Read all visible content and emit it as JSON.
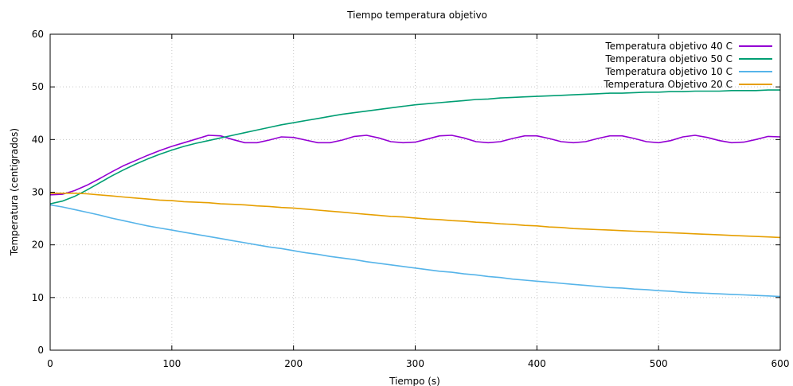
{
  "chart_data": {
    "type": "line",
    "title": "Tiempo temperatura objetivo",
    "xlabel": "Tiempo (s)",
    "ylabel": "Temperatura (centigrados)",
    "xlim": [
      0,
      600
    ],
    "ylim": [
      0,
      60
    ],
    "xticks": [
      0,
      100,
      200,
      300,
      400,
      500,
      600
    ],
    "yticks": [
      0,
      10,
      20,
      30,
      40,
      50,
      60
    ],
    "grid": true,
    "legend_position": "top-right",
    "series": [
      {
        "name": "Temperatura objetivo 40 C",
        "color": "#9400d3",
        "x": [
          0,
          10,
          20,
          30,
          40,
          50,
          60,
          70,
          80,
          90,
          100,
          110,
          120,
          130,
          140,
          150,
          160,
          170,
          180,
          190,
          200,
          210,
          220,
          230,
          240,
          250,
          260,
          270,
          280,
          290,
          300,
          310,
          320,
          330,
          340,
          350,
          360,
          370,
          380,
          390,
          400,
          410,
          420,
          430,
          440,
          450,
          460,
          470,
          480,
          490,
          500,
          510,
          520,
          530,
          540,
          550,
          560,
          570,
          580,
          590,
          600
        ],
        "y": [
          29.5,
          29.6,
          30.3,
          31.3,
          32.5,
          33.8,
          35.0,
          36.0,
          37.0,
          37.9,
          38.7,
          39.4,
          40.1,
          40.8,
          40.7,
          40.0,
          39.4,
          39.4,
          39.9,
          40.5,
          40.4,
          39.9,
          39.4,
          39.4,
          39.9,
          40.6,
          40.8,
          40.3,
          39.6,
          39.4,
          39.5,
          40.1,
          40.7,
          40.8,
          40.3,
          39.6,
          39.4,
          39.6,
          40.2,
          40.7,
          40.7,
          40.2,
          39.6,
          39.4,
          39.6,
          40.2,
          40.7,
          40.7,
          40.2,
          39.6,
          39.4,
          39.8,
          40.5,
          40.8,
          40.4,
          39.8,
          39.4,
          39.5,
          40.0,
          40.6,
          40.5
        ]
      },
      {
        "name": "Temperatura objetivo 50 C",
        "color": "#009e73",
        "x": [
          0,
          10,
          20,
          30,
          40,
          50,
          60,
          70,
          80,
          90,
          100,
          110,
          120,
          130,
          140,
          150,
          160,
          170,
          180,
          190,
          200,
          210,
          220,
          230,
          240,
          250,
          260,
          270,
          280,
          290,
          300,
          310,
          320,
          330,
          340,
          350,
          360,
          370,
          380,
          390,
          400,
          410,
          420,
          430,
          440,
          450,
          460,
          470,
          480,
          490,
          500,
          510,
          520,
          530,
          540,
          550,
          560,
          570,
          580,
          590,
          600
        ],
        "y": [
          27.8,
          28.3,
          29.2,
          30.4,
          31.7,
          33.0,
          34.2,
          35.3,
          36.3,
          37.2,
          38.0,
          38.7,
          39.3,
          39.8,
          40.3,
          40.8,
          41.3,
          41.8,
          42.3,
          42.8,
          43.2,
          43.6,
          44.0,
          44.4,
          44.8,
          45.1,
          45.4,
          45.7,
          46.0,
          46.3,
          46.6,
          46.8,
          47.0,
          47.2,
          47.4,
          47.6,
          47.7,
          47.9,
          48.0,
          48.1,
          48.2,
          48.3,
          48.4,
          48.5,
          48.6,
          48.7,
          48.8,
          48.8,
          48.9,
          49.0,
          49.0,
          49.1,
          49.1,
          49.2,
          49.2,
          49.2,
          49.3,
          49.3,
          49.3,
          49.4,
          49.4
        ]
      },
      {
        "name": "Temperatura objetivo 10 C",
        "color": "#56b4e9",
        "x": [
          0,
          10,
          20,
          30,
          40,
          50,
          60,
          70,
          80,
          90,
          100,
          110,
          120,
          130,
          140,
          150,
          160,
          170,
          180,
          190,
          200,
          210,
          220,
          230,
          240,
          250,
          260,
          270,
          280,
          290,
          300,
          310,
          320,
          330,
          340,
          350,
          360,
          370,
          380,
          390,
          400,
          410,
          420,
          430,
          440,
          450,
          460,
          470,
          480,
          490,
          500,
          510,
          520,
          530,
          540,
          550,
          560,
          570,
          580,
          590,
          600
        ],
        "y": [
          27.6,
          27.2,
          26.7,
          26.2,
          25.7,
          25.1,
          24.6,
          24.1,
          23.6,
          23.2,
          22.8,
          22.4,
          22.0,
          21.6,
          21.2,
          20.8,
          20.4,
          20.0,
          19.6,
          19.3,
          18.9,
          18.5,
          18.2,
          17.8,
          17.5,
          17.2,
          16.8,
          16.5,
          16.2,
          15.9,
          15.6,
          15.3,
          15.0,
          14.8,
          14.5,
          14.3,
          14.0,
          13.8,
          13.5,
          13.3,
          13.1,
          12.9,
          12.7,
          12.5,
          12.3,
          12.1,
          11.9,
          11.8,
          11.6,
          11.5,
          11.3,
          11.2,
          11.0,
          10.9,
          10.8,
          10.7,
          10.6,
          10.5,
          10.4,
          10.3,
          10.2
        ]
      },
      {
        "name": "Temperatura Objetivo 20 C",
        "color": "#e69f00",
        "x": [
          0,
          10,
          20,
          30,
          40,
          50,
          60,
          70,
          80,
          90,
          100,
          110,
          120,
          130,
          140,
          150,
          160,
          170,
          180,
          190,
          200,
          210,
          220,
          230,
          240,
          250,
          260,
          270,
          280,
          290,
          300,
          310,
          320,
          330,
          340,
          350,
          360,
          370,
          380,
          390,
          400,
          410,
          420,
          430,
          440,
          450,
          460,
          470,
          480,
          490,
          500,
          510,
          520,
          530,
          540,
          550,
          560,
          570,
          580,
          590,
          600
        ],
        "y": [
          29.8,
          29.8,
          29.8,
          29.7,
          29.5,
          29.3,
          29.1,
          28.9,
          28.7,
          28.5,
          28.4,
          28.2,
          28.1,
          28.0,
          27.8,
          27.7,
          27.6,
          27.4,
          27.3,
          27.1,
          27.0,
          26.8,
          26.6,
          26.4,
          26.2,
          26.0,
          25.8,
          25.6,
          25.4,
          25.3,
          25.1,
          24.9,
          24.8,
          24.6,
          24.5,
          24.3,
          24.2,
          24.0,
          23.9,
          23.7,
          23.6,
          23.4,
          23.3,
          23.1,
          23.0,
          22.9,
          22.8,
          22.7,
          22.6,
          22.5,
          22.4,
          22.3,
          22.2,
          22.1,
          22.0,
          21.9,
          21.8,
          21.7,
          21.6,
          21.5,
          21.4
        ]
      }
    ]
  }
}
